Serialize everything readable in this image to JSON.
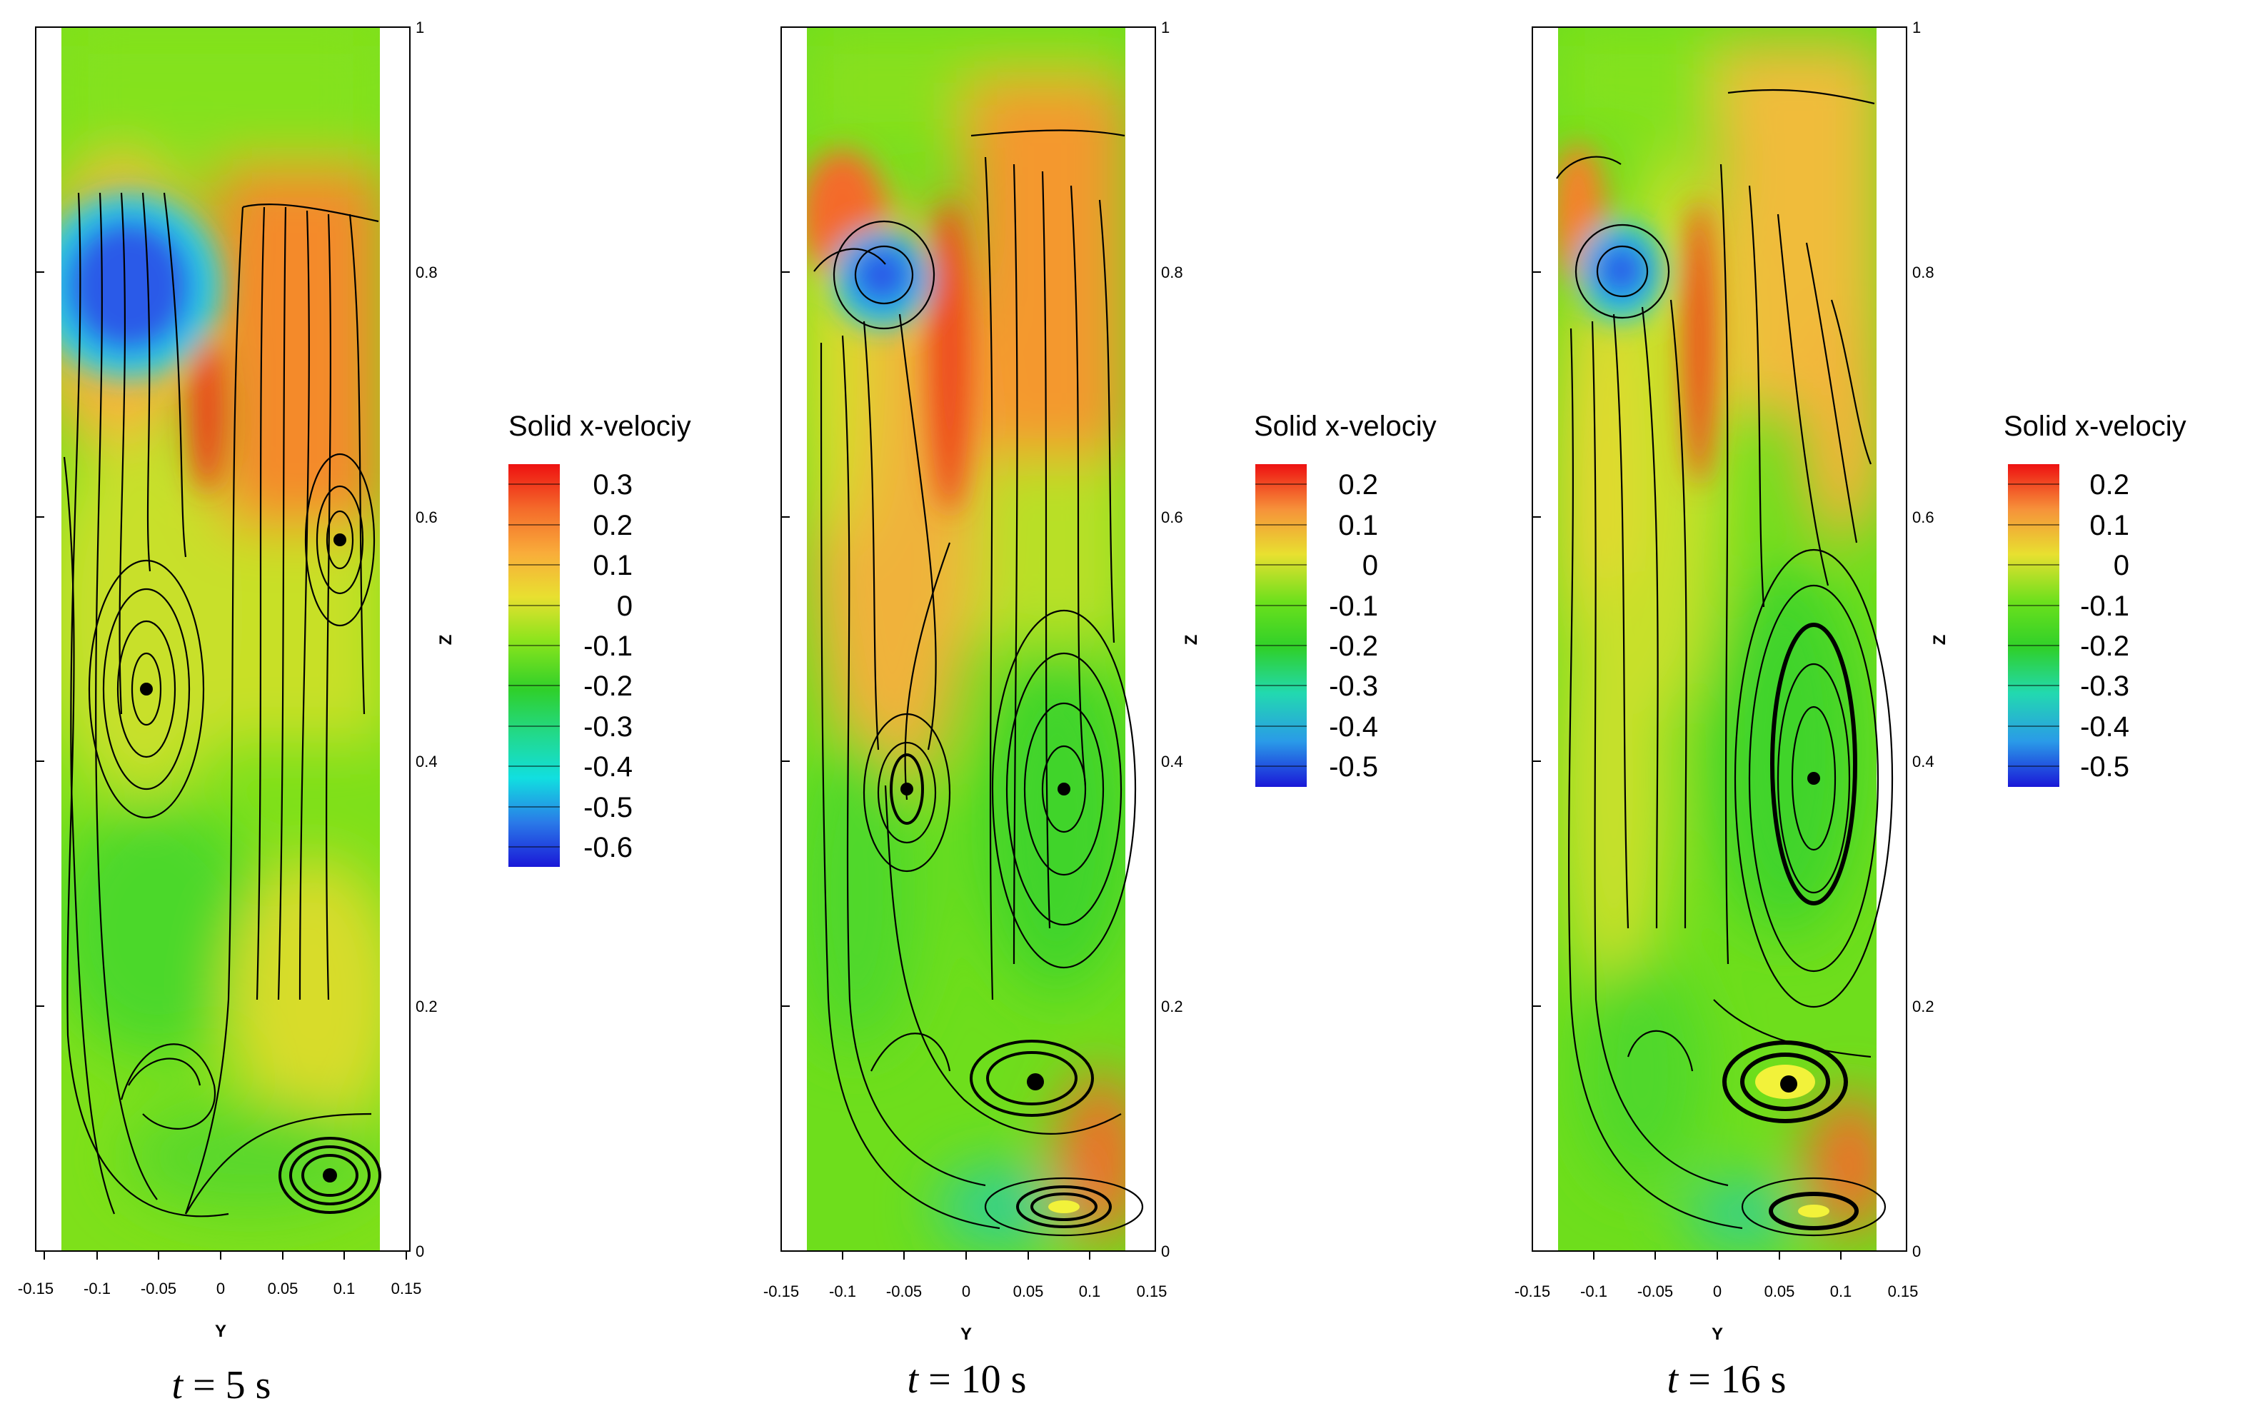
{
  "figure": {
    "panels": [
      {
        "caption": "t = 5 s",
        "caption_t": "t",
        "caption_rest": " = 5 s",
        "legend_title": "Solid x-velociy",
        "legend_levels": [
          "0.3",
          "0.2",
          "0.1",
          "0",
          "-0.1",
          "-0.2",
          "-0.3",
          "-0.4",
          "-0.5",
          "-0.6"
        ]
      },
      {
        "caption": "t = 10 s",
        "caption_t": "t",
        "caption_rest": " = 10 s",
        "legend_title": "Solid x-velociy",
        "legend_levels": [
          "0.2",
          "0.1",
          "0",
          "-0.1",
          "-0.2",
          "-0.3",
          "-0.4",
          "-0.5"
        ]
      },
      {
        "caption": "t = 16 s",
        "caption_t": "t",
        "caption_rest": " = 16 s",
        "legend_title": "Solid x-velociy",
        "legend_levels": [
          "0.2",
          "0.1",
          "0",
          "-0.1",
          "-0.2",
          "-0.3",
          "-0.4",
          "-0.5"
        ]
      }
    ],
    "x_ticks": [
      "-0.15",
      "-0.1",
      "-0.05",
      "0",
      "0.05",
      "0.1",
      "0.15"
    ],
    "z_ticks": [
      "0",
      "0.2",
      "0.4",
      "0.6",
      "0.8",
      "1"
    ],
    "xlabel": "Y",
    "zlabel": "Z"
  },
  "chart_data": [
    {
      "type": "heatmap",
      "time_s": 5,
      "xlabel": "Y",
      "ylabel": "Z",
      "xlim": [
        -0.15,
        0.15
      ],
      "ylim": [
        0,
        1
      ],
      "domain_x": [
        -0.13,
        0.13
      ],
      "variable": "Solid x-velociy",
      "colorbar_levels": [
        0.3,
        0.2,
        0.1,
        0,
        -0.1,
        -0.2,
        -0.3,
        -0.4,
        -0.5,
        -0.6
      ],
      "vortex_centers": [
        {
          "y": -0.06,
          "z": 0.46
        },
        {
          "y": 0.1,
          "z": 0.58
        },
        {
          "y": 0.09,
          "z": 0.06
        }
      ]
    },
    {
      "type": "heatmap",
      "time_s": 10,
      "xlabel": "Y",
      "ylabel": "Z",
      "xlim": [
        -0.15,
        0.15
      ],
      "ylim": [
        0,
        1
      ],
      "domain_x": [
        -0.13,
        0.13
      ],
      "variable": "Solid x-velociy",
      "colorbar_levels": [
        0.2,
        0.1,
        0,
        -0.1,
        -0.2,
        -0.3,
        -0.4,
        -0.5
      ],
      "vortex_centers": [
        {
          "y": -0.05,
          "z": 0.79
        },
        {
          "y": -0.05,
          "z": 0.38
        },
        {
          "y": 0.08,
          "z": 0.38
        },
        {
          "y": 0.05,
          "z": 0.14
        },
        {
          "y": 0.07,
          "z": 0.03
        }
      ]
    },
    {
      "type": "heatmap",
      "time_s": 16,
      "xlabel": "Y",
      "ylabel": "Z",
      "xlim": [
        -0.15,
        0.15
      ],
      "ylim": [
        0,
        1
      ],
      "domain_x": [
        -0.13,
        0.13
      ],
      "variable": "Solid x-velociy",
      "colorbar_levels": [
        0.2,
        0.1,
        0,
        -0.1,
        -0.2,
        -0.3,
        -0.4,
        -0.5
      ],
      "vortex_centers": [
        {
          "y": -0.07,
          "z": 0.8
        },
        {
          "y": 0.08,
          "z": 0.39
        },
        {
          "y": 0.06,
          "z": 0.14
        },
        {
          "y": 0.08,
          "z": 0.03
        }
      ]
    }
  ]
}
